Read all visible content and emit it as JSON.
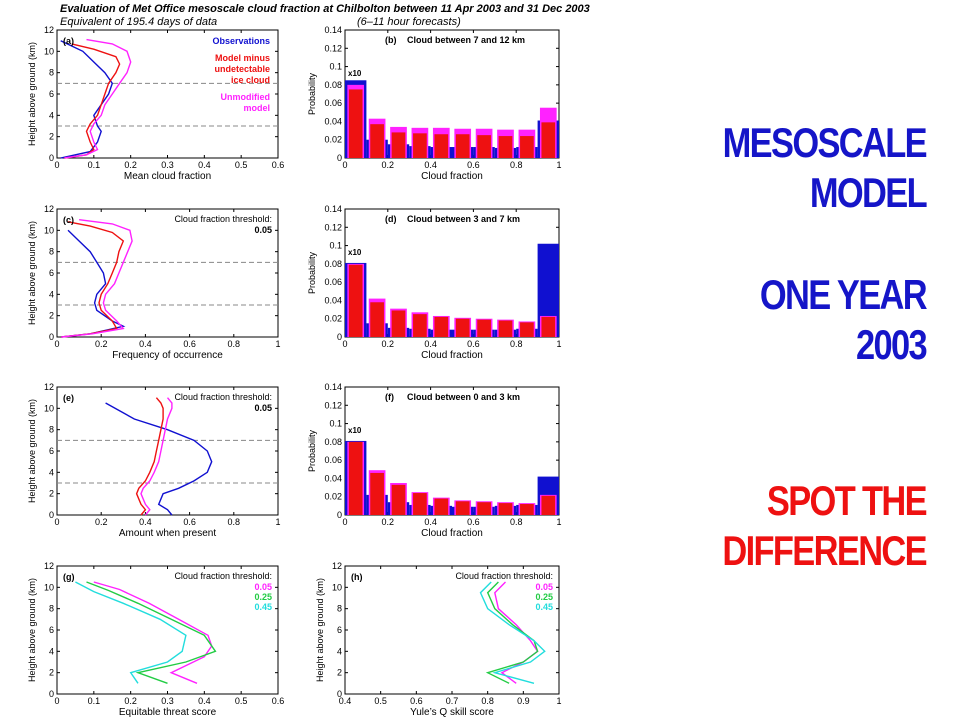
{
  "header": {
    "title": "Evaluation of Met Office mesoscale cloud fraction at Chilbolton between 11 Apr 2003 and 31 Dec 2003",
    "subtitle_left": "Equivalent of 195.4 days of data",
    "subtitle_right": "(6–11 hour forecasts)"
  },
  "side_text": {
    "line1": "MESOSCALE",
    "line2": "MODEL",
    "line3": "ONE YEAR",
    "line4": "2003",
    "line5": "SPOT THE",
    "line6": "DIFFERENCE"
  },
  "colors": {
    "observations": "#1010d0",
    "model": "#ee1111",
    "unmodified": "#ff22ff",
    "t005": "#ff22ff",
    "t025": "#22cc44",
    "t045": "#22dddd",
    "dashed": "#888888"
  },
  "chart_data": [
    {
      "type": "line",
      "panel": "(a)",
      "xlabel": "Mean cloud fraction",
      "ylabel": "Height above ground (km)",
      "xlim": [
        0,
        0.6
      ],
      "ylim": [
        0,
        12
      ],
      "xticks": [
        "0",
        "0.1",
        "0.2",
        "0.3",
        "0.4",
        "0.5",
        "0.6"
      ],
      "yticks": [
        "0",
        "2",
        "4",
        "6",
        "8",
        "10",
        "12"
      ],
      "dashed_lines_y": [
        3,
        7
      ],
      "legend": [
        "Observations",
        "Model minus undetectable ice cloud",
        "Unmodified model"
      ],
      "series": [
        {
          "name": "Observations",
          "color": "observations",
          "x": [
            0.01,
            0.05,
            0.09,
            0.11,
            0.12,
            0.11,
            0.1,
            0.12,
            0.14,
            0.15,
            0.13,
            0.1,
            0.07,
            0.04,
            0.01
          ],
          "y": [
            0,
            0.3,
            0.6,
            1.5,
            2.5,
            3,
            4,
            5,
            6,
            7,
            8,
            9,
            10,
            10.5,
            11
          ]
        },
        {
          "name": "Model minus undetectable ice cloud",
          "color": "model",
          "x": [
            0.02,
            0.08,
            0.1,
            0.09,
            0.08,
            0.09,
            0.11,
            0.12,
            0.13,
            0.14,
            0.16,
            0.17,
            0.16,
            0.1,
            0.04
          ],
          "y": [
            0,
            0.3,
            0.8,
            1.5,
            2.5,
            3.2,
            4,
            5,
            6,
            7,
            8,
            8.8,
            9.5,
            10.2,
            10.7
          ]
        },
        {
          "name": "Unmodified model",
          "color": "unmodified",
          "x": [
            0.02,
            0.08,
            0.11,
            0.1,
            0.09,
            0.1,
            0.12,
            0.13,
            0.15,
            0.17,
            0.19,
            0.2,
            0.19,
            0.15,
            0.08
          ],
          "y": [
            0,
            0.3,
            0.8,
            1.5,
            2.5,
            3.2,
            4,
            5,
            6,
            7,
            8,
            9,
            10,
            10.7,
            11.1
          ]
        }
      ]
    },
    {
      "type": "bar",
      "panel": "(b)",
      "title": "Cloud between 7 and 12 km",
      "xlabel": "Cloud fraction",
      "ylabel": "Probability",
      "xlim": [
        0,
        1
      ],
      "ylim": [
        0,
        0.14
      ],
      "xticks": [
        "0",
        "0.2",
        "0.4",
        "0.6",
        "0.8",
        "1"
      ],
      "yticks": [
        "0",
        "0.02",
        "0.04",
        "0.06",
        "0.08",
        "0.1",
        "0.12",
        "0.14"
      ],
      "x10_label": "x10",
      "categories": [
        0.05,
        0.15,
        0.25,
        0.35,
        0.45,
        0.55,
        0.65,
        0.75,
        0.85,
        0.95
      ],
      "series": [
        {
          "name": "Observations",
          "color": "observations",
          "values": [
            0.085,
            0.02,
            0.015,
            0.013,
            0.012,
            0.012,
            0.012,
            0.011,
            0.012,
            0.041
          ]
        },
        {
          "name": "Unmodified model",
          "color": "unmodified",
          "values": [
            0.08,
            0.043,
            0.034,
            0.033,
            0.033,
            0.032,
            0.032,
            0.031,
            0.031,
            0.055
          ]
        },
        {
          "name": "Model minus undetectable ice cloud",
          "color": "model",
          "values": [
            0.075,
            0.037,
            0.028,
            0.027,
            0.026,
            0.026,
            0.025,
            0.024,
            0.024,
            0.039
          ]
        }
      ]
    },
    {
      "type": "line",
      "panel": "(c)",
      "xlabel": "Frequency of occurrence",
      "ylabel": "Height above ground (km)",
      "xlim": [
        0,
        1
      ],
      "ylim": [
        0,
        12
      ],
      "xticks": [
        "0",
        "0.2",
        "0.4",
        "0.6",
        "0.8",
        "1"
      ],
      "yticks": [
        "0",
        "2",
        "4",
        "6",
        "8",
        "10",
        "12"
      ],
      "dashed_lines_y": [
        3,
        7
      ],
      "threshold_label": "Cloud fraction threshold:",
      "threshold_values": [
        "0.05"
      ],
      "series": [
        {
          "name": "Observations",
          "color": "observations",
          "x": [
            0.02,
            0.15,
            0.3,
            0.25,
            0.18,
            0.17,
            0.18,
            0.22,
            0.21,
            0.18,
            0.15,
            0.1,
            0.05
          ],
          "y": [
            0,
            0.3,
            1,
            1.5,
            2.5,
            3.2,
            4,
            5,
            6,
            7,
            8,
            9,
            10
          ]
        },
        {
          "name": "Model minus undetectable ice cloud",
          "color": "model",
          "x": [
            0.02,
            0.15,
            0.27,
            0.25,
            0.2,
            0.19,
            0.2,
            0.23,
            0.25,
            0.27,
            0.28,
            0.3,
            0.25,
            0.15,
            0.05
          ],
          "y": [
            0,
            0.3,
            0.8,
            1.5,
            2.5,
            3.2,
            4,
            5,
            6,
            7,
            8,
            9,
            9.8,
            10.4,
            10.8
          ]
        },
        {
          "name": "Unmodified model",
          "color": "unmodified",
          "x": [
            0.02,
            0.16,
            0.3,
            0.27,
            0.22,
            0.21,
            0.22,
            0.26,
            0.28,
            0.3,
            0.32,
            0.34,
            0.33,
            0.25,
            0.1
          ],
          "y": [
            0,
            0.3,
            0.8,
            1.5,
            2.5,
            3.2,
            4,
            5,
            6,
            7,
            8,
            9,
            10,
            10.6,
            11
          ]
        }
      ]
    },
    {
      "type": "bar",
      "panel": "(d)",
      "title": "Cloud between 3 and 7 km",
      "xlabel": "Cloud fraction",
      "ylabel": "Probability",
      "xlim": [
        0,
        1
      ],
      "ylim": [
        0,
        0.14
      ],
      "xticks": [
        "0",
        "0.2",
        "0.4",
        "0.6",
        "0.8",
        "1"
      ],
      "yticks": [
        "0",
        "0.02",
        "0.04",
        "0.06",
        "0.08",
        "0.1",
        "0.12",
        "0.14"
      ],
      "x10_label": "x10",
      "categories": [
        0.05,
        0.15,
        0.25,
        0.35,
        0.45,
        0.55,
        0.65,
        0.75,
        0.85,
        0.95
      ],
      "series": [
        {
          "name": "Observations",
          "color": "observations",
          "values": [
            0.081,
            0.015,
            0.01,
            0.009,
            0.008,
            0.008,
            0.008,
            0.008,
            0.009,
            0.102
          ]
        },
        {
          "name": "Unmodified model",
          "color": "unmodified",
          "values": [
            0.08,
            0.042,
            0.031,
            0.027,
            0.023,
            0.021,
            0.02,
            0.019,
            0.017,
            0.023
          ]
        },
        {
          "name": "Model minus undetectable ice cloud",
          "color": "model",
          "values": [
            0.079,
            0.038,
            0.029,
            0.025,
            0.022,
            0.02,
            0.019,
            0.018,
            0.016,
            0.022
          ]
        }
      ]
    },
    {
      "type": "line",
      "panel": "(e)",
      "xlabel": "Amount when present",
      "ylabel": "Height above ground (km)",
      "xlim": [
        0,
        1
      ],
      "ylim": [
        0,
        12
      ],
      "xticks": [
        "0",
        "0.2",
        "0.4",
        "0.6",
        "0.8",
        "1"
      ],
      "yticks": [
        "0",
        "2",
        "4",
        "6",
        "8",
        "10",
        "12"
      ],
      "dashed_lines_y": [
        3,
        7
      ],
      "threshold_label": "Cloud fraction threshold:",
      "threshold_values": [
        "0.05"
      ],
      "series": [
        {
          "name": "Observations",
          "color": "observations",
          "x": [
            0.52,
            0.5,
            0.46,
            0.48,
            0.55,
            0.62,
            0.68,
            0.7,
            0.68,
            0.62,
            0.5,
            0.35,
            0.22
          ],
          "y": [
            0,
            0.5,
            1,
            2,
            2.5,
            3.2,
            4,
            5,
            6,
            7,
            8,
            9,
            10.5
          ]
        },
        {
          "name": "Model minus undetectable ice cloud",
          "color": "model",
          "x": [
            0.38,
            0.4,
            0.38,
            0.36,
            0.37,
            0.4,
            0.42,
            0.44,
            0.45,
            0.46,
            0.47,
            0.48,
            0.48,
            0.47,
            0.45
          ],
          "y": [
            0,
            0.5,
            1,
            2,
            2.5,
            3.2,
            4,
            5,
            6,
            7,
            8,
            9,
            10,
            10.5,
            11
          ]
        },
        {
          "name": "Unmodified model",
          "color": "unmodified",
          "x": [
            0.4,
            0.42,
            0.4,
            0.38,
            0.39,
            0.42,
            0.44,
            0.46,
            0.47,
            0.48,
            0.49,
            0.5,
            0.52,
            0.52,
            0.5
          ],
          "y": [
            0,
            0.5,
            1,
            2,
            2.5,
            3.2,
            4,
            5,
            6,
            7,
            8,
            9,
            10,
            10.5,
            11
          ]
        }
      ]
    },
    {
      "type": "bar",
      "panel": "(f)",
      "title": "Cloud between 0 and 3 km",
      "xlabel": "Cloud fraction",
      "ylabel": "Probability",
      "xlim": [
        0,
        1
      ],
      "ylim": [
        0,
        0.14
      ],
      "xticks": [
        "0",
        "0.2",
        "0.4",
        "0.6",
        "0.8",
        "1"
      ],
      "yticks": [
        "0",
        "0.02",
        "0.04",
        "0.06",
        "0.08",
        "0.1",
        "0.12",
        "0.14"
      ],
      "x10_label": "x10",
      "categories": [
        0.05,
        0.15,
        0.25,
        0.35,
        0.45,
        0.55,
        0.65,
        0.75,
        0.85,
        0.95
      ],
      "series": [
        {
          "name": "Observations",
          "color": "observations",
          "values": [
            0.081,
            0.022,
            0.014,
            0.011,
            0.01,
            0.009,
            0.009,
            0.01,
            0.011,
            0.042
          ]
        },
        {
          "name": "Unmodified model",
          "color": "unmodified",
          "values": [
            0.08,
            0.049,
            0.035,
            0.025,
            0.019,
            0.016,
            0.015,
            0.014,
            0.013,
            0.022
          ]
        },
        {
          "name": "Model minus undetectable ice cloud",
          "color": "model",
          "values": [
            0.08,
            0.046,
            0.033,
            0.024,
            0.018,
            0.015,
            0.014,
            0.013,
            0.012,
            0.021
          ]
        }
      ]
    },
    {
      "type": "line",
      "panel": "(g)",
      "xlabel": "Equitable threat score",
      "ylabel": "Height above ground (km)",
      "xlim": [
        0,
        0.6
      ],
      "ylim": [
        0,
        12
      ],
      "xticks": [
        "0",
        "0.1",
        "0.2",
        "0.3",
        "0.4",
        "0.5",
        "0.6"
      ],
      "yticks": [
        "0",
        "2",
        "4",
        "6",
        "8",
        "10",
        "12"
      ],
      "threshold_label": "Cloud fraction threshold:",
      "threshold_values": [
        "0.05",
        "0.25",
        "0.45"
      ],
      "series": [
        {
          "name": "0.05",
          "color": "t005",
          "x": [
            0.38,
            0.31,
            0.4,
            0.42,
            0.41,
            0.33,
            0.25,
            0.17,
            0.1
          ],
          "y": [
            1,
            2,
            3.5,
            4.5,
            5.5,
            7,
            8.5,
            9.8,
            10.5
          ]
        },
        {
          "name": "0.25",
          "color": "t025",
          "x": [
            0.3,
            0.22,
            0.35,
            0.43,
            0.4,
            0.31,
            0.22,
            0.14,
            0.08
          ],
          "y": [
            1,
            2,
            3,
            4,
            5.5,
            7,
            8.5,
            9.7,
            10.5
          ]
        },
        {
          "name": "0.45",
          "color": "t045",
          "x": [
            0.22,
            0.2,
            0.3,
            0.34,
            0.35,
            0.28,
            0.18,
            0.1,
            0.05
          ],
          "y": [
            1,
            2,
            3,
            4,
            5.5,
            7,
            8.5,
            9.6,
            10.5
          ]
        }
      ]
    },
    {
      "type": "line",
      "panel": "(h)",
      "xlabel": "Yule’s Q skill score",
      "ylabel": "Height above ground (km)",
      "xlim": [
        0.4,
        1
      ],
      "ylim": [
        0,
        12
      ],
      "xticks": [
        "0.4",
        "0.5",
        "0.6",
        "0.7",
        "0.8",
        "0.9",
        "1"
      ],
      "yticks": [
        "0",
        "2",
        "4",
        "6",
        "8",
        "10",
        "12"
      ],
      "threshold_label": "Cloud fraction threshold:",
      "threshold_values": [
        "0.05",
        "0.25",
        "0.45"
      ],
      "series": [
        {
          "name": "0.05",
          "color": "t005",
          "x": [
            0.88,
            0.84,
            0.9,
            0.94,
            0.92,
            0.88,
            0.83,
            0.82,
            0.85
          ],
          "y": [
            1,
            2,
            3,
            4,
            5,
            6.5,
            8,
            9.5,
            10.5
          ]
        },
        {
          "name": "0.25",
          "color": "t025",
          "x": [
            0.86,
            0.8,
            0.9,
            0.94,
            0.93,
            0.87,
            0.82,
            0.8,
            0.83
          ],
          "y": [
            1,
            2,
            3,
            4,
            5,
            6.5,
            8,
            9.5,
            10.5
          ]
        },
        {
          "name": "0.45",
          "color": "t045",
          "x": [
            0.93,
            0.82,
            0.92,
            0.96,
            0.93,
            0.86,
            0.8,
            0.78,
            0.81
          ],
          "y": [
            1,
            2,
            3,
            4,
            5,
            6.5,
            8,
            9.5,
            10.5
          ]
        }
      ]
    }
  ]
}
